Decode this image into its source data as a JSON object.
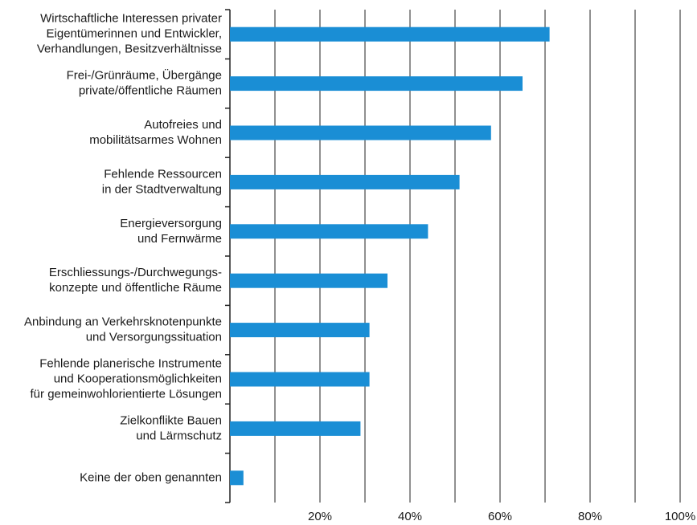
{
  "chart_data": {
    "type": "barh",
    "categories": [
      [
        "Wirtschaftliche Interessen privater",
        "Eigentümerinnen und Entwickler,",
        "Verhandlungen, Besitzverhältnisse"
      ],
      [
        "Frei-/Grünräume, Übergänge",
        "private/öffentliche Räumen"
      ],
      [
        "Autofreies und",
        "mobilitätsarmes Wohnen"
      ],
      [
        "Fehlende Ressourcen",
        "in der Stadtverwaltung"
      ],
      [
        "Energieversorgung",
        "und Fernwärme"
      ],
      [
        "Erschliessungs-/Durchwegungs-",
        "konzepte und öffentliche Räume"
      ],
      [
        "Anbindung an Verkehrsknotenpunkte",
        "und Versorgungssituation"
      ],
      [
        "Fehlende planerische Instrumente",
        "und Kooperationsmöglichkeiten",
        "für gemeinwohlorientierte Lösungen"
      ],
      [
        "Zielkonflikte Bauen",
        "und Lärmschutz"
      ],
      [
        "Keine der oben genannten"
      ]
    ],
    "values": [
      71,
      65,
      58,
      51,
      44,
      35,
      31,
      31,
      29,
      3
    ],
    "color": "#1a8ed5",
    "xlim": [
      0,
      100
    ],
    "xticks": [
      {
        "value": 20,
        "label": "20%"
      },
      {
        "value": 40,
        "label": "40%"
      },
      {
        "value": 60,
        "label": "60%"
      },
      {
        "value": 80,
        "label": "80%"
      },
      {
        "value": 100,
        "label": "100%"
      }
    ],
    "xgrid": [
      10,
      20,
      30,
      40,
      50,
      60,
      70,
      80,
      90,
      100
    ],
    "grid": true
  }
}
